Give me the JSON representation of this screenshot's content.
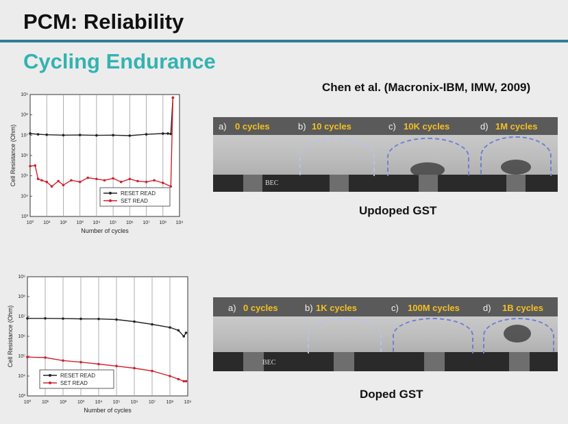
{
  "slide": {
    "title": "PCM: Reliability",
    "subtitle": "Cycling Endurance",
    "citation": "Chen et al. (Macronix-IBM, IMW, 2009)",
    "accent_color": "#2f7f96",
    "subtitle_color": "#33b3b0"
  },
  "captions": {
    "undoped": "Updoped GST",
    "doped": "Doped GST"
  },
  "tem_top": {
    "panels": [
      {
        "letter": "a)",
        "cycles": "0 cycles"
      },
      {
        "letter": "b)",
        "cycles": "10 cycles"
      },
      {
        "letter": "c)",
        "cycles": "10K cycles"
      },
      {
        "letter": "d)",
        "cycles": "1M cycles"
      }
    ],
    "electrode_label": "BEC"
  },
  "tem_bottom": {
    "panels": [
      {
        "letter": "a)",
        "cycles": "0 cycles"
      },
      {
        "letter": "b)",
        "cycles": "1K cycles"
      },
      {
        "letter": "c)",
        "cycles": "100M cycles"
      },
      {
        "letter": "d)",
        "cycles": "1B cycles"
      }
    ],
    "electrode_label": "BEC"
  },
  "chart_data": [
    {
      "type": "line",
      "xlabel": "Number of cycles",
      "ylabel": "Cell Resistance (Ohm)",
      "xscale": "log",
      "yscale": "log",
      "xlim": [
        1,
        1000000000
      ],
      "ylim": [
        1000,
        1000000000
      ],
      "xticks": [
        "10⁰",
        "10¹",
        "10²",
        "10³",
        "10⁴",
        "10⁵",
        "10⁶",
        "10⁷",
        "10⁸",
        "10⁹"
      ],
      "yticks": [
        "10³",
        "10⁴",
        "10⁵",
        "10⁶",
        "10⁷",
        "10⁸",
        "10⁹"
      ],
      "legend_position": "bottom-right",
      "series": [
        {
          "name": "RESET READ",
          "color": "#222222",
          "x": [
            1,
            3,
            10,
            100,
            1000,
            10000,
            100000,
            1000000,
            10000000,
            100000000,
            200000000,
            300000000,
            400000000
          ],
          "y": [
            12000000,
            11000000,
            10500000,
            10000000,
            10200000,
            9800000,
            10000000,
            9500000,
            11000000,
            12000000,
            12000000,
            11500000,
            700000000
          ]
        },
        {
          "name": "SET READ",
          "color": "#d0202c",
          "x": [
            1,
            2,
            3,
            5,
            10,
            20,
            50,
            100,
            300,
            1000,
            3000,
            10000,
            30000,
            100000,
            300000,
            1000000,
            3000000,
            10000000,
            30000000,
            100000000,
            300000000,
            400000000
          ],
          "y": [
            300000,
            320000,
            70000,
            60000,
            50000,
            30000,
            55000,
            35000,
            60000,
            50000,
            80000,
            70000,
            60000,
            75000,
            50000,
            70000,
            55000,
            50000,
            60000,
            45000,
            30000,
            700000000
          ]
        }
      ]
    },
    {
      "type": "line",
      "xlabel": "Number of cycles",
      "ylabel": "Cell Resistance (Ohm)",
      "xscale": "log",
      "yscale": "log",
      "xlim": [
        1,
        1000000000
      ],
      "ylim": [
        1000,
        1000000000
      ],
      "xticks": [
        "10⁰",
        "10¹",
        "10²",
        "10³",
        "10⁴",
        "10⁵",
        "10⁶",
        "10⁷",
        "10⁸",
        "10⁹"
      ],
      "yticks": [
        "10³",
        "10⁴",
        "10⁵",
        "10⁶",
        "10⁷",
        "10⁸",
        "10⁹"
      ],
      "legend_position": "bottom-left",
      "series": [
        {
          "name": "RESET READ",
          "color": "#222222",
          "x": [
            1,
            10,
            100,
            1000,
            10000,
            100000,
            1000000,
            10000000,
            100000000,
            300000000,
            600000000,
            800000000
          ],
          "y": [
            8000000,
            8000000,
            7800000,
            7600000,
            7500000,
            7000000,
            5500000,
            4000000,
            2800000,
            2000000,
            1000000,
            1500000
          ]
        },
        {
          "name": "SET READ",
          "color": "#d0202c",
          "x": [
            1,
            10,
            100,
            1000,
            10000,
            100000,
            1000000,
            10000000,
            100000000,
            300000000,
            600000000,
            800000000
          ],
          "y": [
            90000,
            85000,
            60000,
            50000,
            40000,
            32000,
            25000,
            18000,
            10000,
            7000,
            5500,
            5500
          ]
        }
      ]
    }
  ]
}
